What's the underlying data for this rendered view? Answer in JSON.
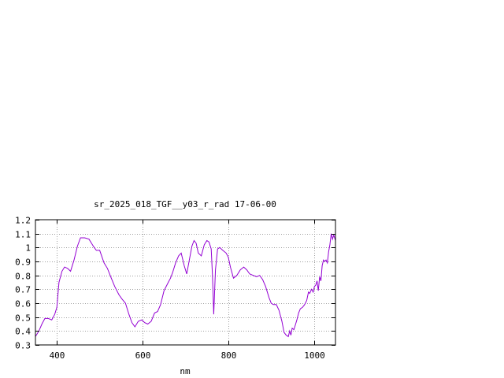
{
  "chart_data": {
    "type": "line",
    "title": "sr_2025_018_TGF__y03_r_rad 17-06-00",
    "xlabel": "nm",
    "ylabel": "",
    "xlim": [
      350,
      1050
    ],
    "ylim": [
      0.3,
      1.2
    ],
    "xticks": [
      400,
      600,
      800,
      1000
    ],
    "xtick_labels": [
      "400",
      "600",
      "800",
      "1000"
    ],
    "yticks": [
      0.3,
      0.4,
      0.5,
      0.6,
      0.7,
      0.8,
      0.9,
      1.0,
      1.1,
      1.2
    ],
    "ytick_labels": [
      "0.3",
      "0.4",
      "0.5",
      "0.6",
      "0.7",
      "0.8",
      "0.9",
      "1",
      "1.1",
      "1.2"
    ],
    "grid": true,
    "legend": "none",
    "colors": {
      "series": "#9400d3",
      "axes": "#000000",
      "grid": "#a0a0a0"
    },
    "series": [
      {
        "x": [
          350,
          358,
          365,
          372,
          380,
          388,
          395,
          400,
          405,
          412,
          418,
          425,
          432,
          440,
          448,
          455,
          465,
          475,
          485,
          492,
          500,
          510,
          518,
          527,
          535,
          545,
          552,
          560,
          568,
          575,
          582,
          590,
          598,
          605,
          612,
          620,
          628,
          635,
          642,
          650,
          660,
          665,
          670,
          677,
          684,
          690,
          697,
          703,
          709,
          715,
          720,
          725,
          730,
          737,
          744,
          750,
          755,
          760,
          763,
          766,
          770,
          775,
          780,
          787,
          795,
          800,
          805,
          812,
          820,
          828,
          836,
          843,
          850,
          858,
          866,
          873,
          880,
          887,
          895,
          900,
          905,
          912,
          918,
          925,
          930,
          935,
          940,
          943,
          946,
          949,
          953,
          957,
          960,
          964,
          968,
          973,
          978,
          983,
          987,
          990,
          994,
          998,
          1001,
          1004,
          1007,
          1010,
          1013,
          1016,
          1019,
          1022,
          1025,
          1028,
          1031,
          1034,
          1037,
          1040,
          1043,
          1046,
          1050
        ],
        "y": [
          0.36,
          0.4,
          0.45,
          0.49,
          0.49,
          0.48,
          0.52,
          0.57,
          0.75,
          0.83,
          0.86,
          0.85,
          0.83,
          0.91,
          1.01,
          1.07,
          1.07,
          1.06,
          1.01,
          0.98,
          0.98,
          0.89,
          0.85,
          0.78,
          0.72,
          0.66,
          0.63,
          0.6,
          0.52,
          0.46,
          0.43,
          0.47,
          0.48,
          0.46,
          0.45,
          0.47,
          0.53,
          0.54,
          0.59,
          0.69,
          0.75,
          0.78,
          0.82,
          0.89,
          0.94,
          0.96,
          0.87,
          0.81,
          0.91,
          1.01,
          1.05,
          1.03,
          0.96,
          0.94,
          1.02,
          1.05,
          1.04,
          0.99,
          0.8,
          0.52,
          0.84,
          0.99,
          1.0,
          0.98,
          0.96,
          0.93,
          0.86,
          0.78,
          0.8,
          0.84,
          0.86,
          0.84,
          0.81,
          0.8,
          0.79,
          0.8,
          0.77,
          0.72,
          0.64,
          0.6,
          0.59,
          0.59,
          0.55,
          0.47,
          0.39,
          0.37,
          0.36,
          0.4,
          0.37,
          0.42,
          0.41,
          0.45,
          0.48,
          0.53,
          0.56,
          0.57,
          0.59,
          0.62,
          0.68,
          0.67,
          0.7,
          0.68,
          0.72,
          0.73,
          0.76,
          0.69,
          0.79,
          0.76,
          0.87,
          0.91,
          0.9,
          0.91,
          0.89,
          0.97,
          1.02,
          1.1,
          1.06,
          1.09,
          1.05
        ]
      }
    ]
  }
}
